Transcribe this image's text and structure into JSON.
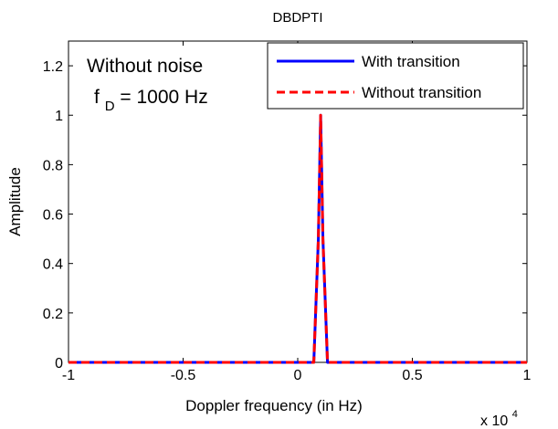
{
  "chart_data": {
    "type": "line",
    "title": "DBDPTI",
    "xlabel": "Doppler frequency (in Hz)",
    "ylabel": "Amplitude",
    "x_multiplier": {
      "base": "x 10",
      "exponent": "4"
    },
    "xlim": [
      -1,
      1
    ],
    "ylim": [
      0,
      1.3
    ],
    "xticks": [
      -1,
      -0.5,
      0,
      0.5,
      1
    ],
    "xtick_labels": [
      "-1",
      "-0.5",
      "0",
      "0.5",
      "1"
    ],
    "yticks": [
      0,
      0.2,
      0.4,
      0.6,
      0.8,
      1,
      1.2
    ],
    "ytick_labels": [
      "0",
      "0.2",
      "0.4",
      "0.6",
      "0.8",
      "1",
      "1.2"
    ],
    "grid": false,
    "legend_position": "top-right",
    "annotations": {
      "line1": "Without noise",
      "line2_f": "f",
      "line2_sub": "D",
      "line2_rest": " = 1000 Hz"
    },
    "series": [
      {
        "name": "With transition",
        "color": "#0000ff",
        "style": "solid",
        "x": [
          -1,
          0.07,
          0.09,
          0.1,
          0.11,
          0.13,
          1
        ],
        "y": [
          0,
          0,
          0.5,
          1,
          0.5,
          0,
          0
        ]
      },
      {
        "name": "Without transition",
        "color": "#ff0000",
        "style": "dashed",
        "x": [
          -1,
          0.07,
          0.09,
          0.1,
          0.11,
          0.13,
          1
        ],
        "y": [
          0,
          0,
          0.5,
          1,
          0.5,
          0,
          0
        ]
      }
    ]
  }
}
